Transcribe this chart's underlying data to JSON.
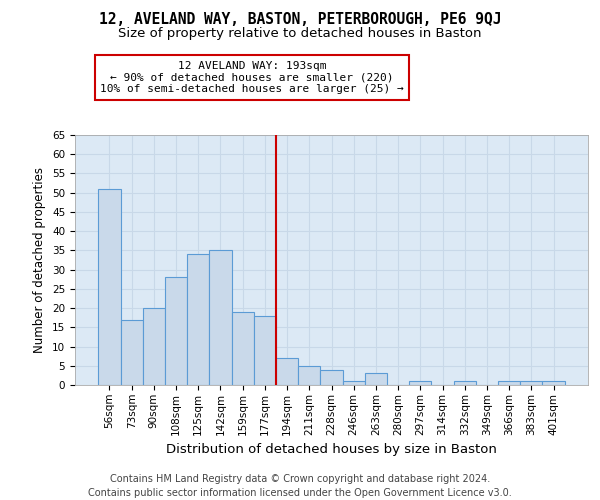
{
  "title": "12, AVELAND WAY, BASTON, PETERBOROUGH, PE6 9QJ",
  "subtitle": "Size of property relative to detached houses in Baston",
  "xlabel": "Distribution of detached houses by size in Baston",
  "ylabel": "Number of detached properties",
  "categories": [
    "56sqm",
    "73sqm",
    "90sqm",
    "108sqm",
    "125sqm",
    "142sqm",
    "159sqm",
    "177sqm",
    "194sqm",
    "211sqm",
    "228sqm",
    "246sqm",
    "263sqm",
    "280sqm",
    "297sqm",
    "314sqm",
    "332sqm",
    "349sqm",
    "366sqm",
    "383sqm",
    "401sqm"
  ],
  "values": [
    51,
    17,
    20,
    28,
    34,
    35,
    19,
    18,
    7,
    5,
    4,
    1,
    3,
    0,
    1,
    0,
    1,
    0,
    1,
    1,
    1
  ],
  "bar_color": "#c9d9ea",
  "bar_edge_color": "#5b9bd5",
  "bar_edge_width": 0.8,
  "vline_x": 7.5,
  "vline_color": "#cc0000",
  "annotation_title": "12 AVELAND WAY: 193sqm",
  "annotation_line1": "← 90% of detached houses are smaller (220)",
  "annotation_line2": "10% of semi-detached houses are larger (25) →",
  "annotation_box_color": "#ffffff",
  "annotation_box_edge": "#cc0000",
  "ylim": [
    0,
    65
  ],
  "yticks": [
    0,
    5,
    10,
    15,
    20,
    25,
    30,
    35,
    40,
    45,
    50,
    55,
    60,
    65
  ],
  "grid_color": "#c8d8e8",
  "background_color": "#dce9f5",
  "footer_line1": "Contains HM Land Registry data © Crown copyright and database right 2024.",
  "footer_line2": "Contains public sector information licensed under the Open Government Licence v3.0.",
  "title_fontsize": 10.5,
  "subtitle_fontsize": 9.5,
  "xlabel_fontsize": 9.5,
  "ylabel_fontsize": 8.5,
  "tick_fontsize": 7.5,
  "footer_fontsize": 7.0,
  "annot_fontsize": 8.0
}
